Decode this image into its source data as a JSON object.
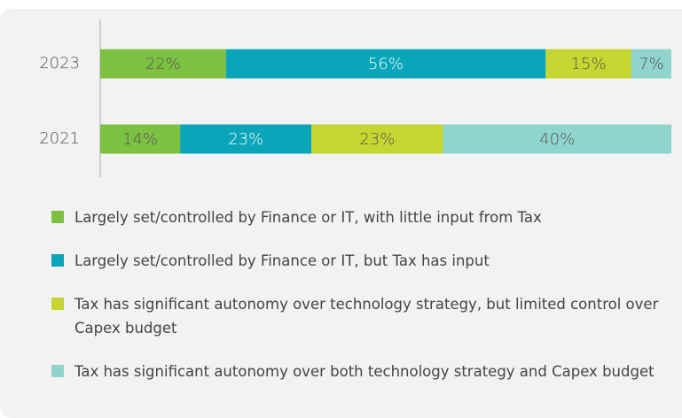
{
  "chart_data": {
    "type": "stacked_bar_horizontal",
    "categories": [
      "2023",
      "2021"
    ],
    "xlim": [
      0,
      100
    ],
    "series": [
      {
        "name": "Largely set/controlled by Finance or IT, with little input from Tax",
        "color": "#7dc142",
        "values": [
          22,
          14
        ],
        "value_labels": [
          "22%",
          "14%"
        ]
      },
      {
        "name": "Largely set/controlled by Finance or IT, but Tax has input",
        "color": "#0aa5b8",
        "values": [
          56,
          23
        ],
        "value_labels": [
          "56%",
          "23%"
        ]
      },
      {
        "name": "Tax has significant autonomy over technology strategy, but limited control over Capex budget",
        "color": "#c6d630",
        "values": [
          15,
          23
        ],
        "value_labels": [
          "15%",
          "23%"
        ]
      },
      {
        "name": "Tax has significant autonomy over both technology strategy and Capex budget",
        "color": "#8fd5cd",
        "values": [
          7,
          40
        ],
        "value_labels": [
          "7%",
          "40%"
        ]
      }
    ],
    "legend": "bottom"
  }
}
